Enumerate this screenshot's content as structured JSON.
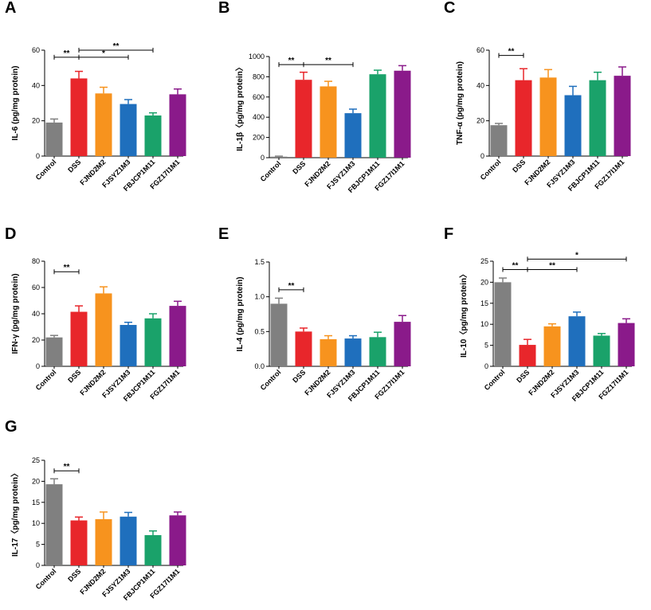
{
  "categories": [
    "Control",
    "DSS",
    "FJND2M2",
    "FJSYZ1M3",
    "FBJCP1M11",
    "FGZ17I1M1"
  ],
  "colors": [
    "#808080",
    "#e8262b",
    "#f7931e",
    "#1f6fbd",
    "#1aa26a",
    "#8a1a8a"
  ],
  "chart_data": [
    {
      "type": "bar",
      "letter": "A",
      "ylabel": "IL-6 (pg/mg protein)",
      "ylim": [
        0,
        60
      ],
      "yticks": [
        0,
        20,
        40,
        60
      ],
      "tick_labels": [
        "0",
        "20",
        "40",
        "60"
      ],
      "values": [
        19,
        44,
        35.5,
        29.5,
        23,
        35
      ],
      "errors": [
        2,
        4,
        3.5,
        2.5,
        1.5,
        3
      ],
      "significance": [
        {
          "from": 0,
          "to": 1,
          "label": "**",
          "y": 56
        },
        {
          "from": 1,
          "to": 3,
          "label": "*",
          "y": 56
        },
        {
          "from": 1,
          "to": 4,
          "label": "**",
          "y": 60
        }
      ]
    },
    {
      "type": "bar",
      "letter": "B",
      "ylabel": "IL-1β〈pg/mg protein〉",
      "ylim": [
        0,
        1000
      ],
      "yticks": [
        0,
        200,
        400,
        600,
        800,
        1000
      ],
      "tick_labels": [
        "0",
        "200",
        "400",
        "600",
        "800",
        "1000"
      ],
      "values": [
        10,
        770,
        705,
        440,
        825,
        860
      ],
      "errors": [
        5,
        75,
        50,
        40,
        40,
        50
      ],
      "significance": [
        {
          "from": 0,
          "to": 1,
          "label": "**",
          "y": 920
        },
        {
          "from": 1,
          "to": 3,
          "label": "**",
          "y": 920
        }
      ]
    },
    {
      "type": "bar",
      "letter": "C",
      "ylabel": "TNF-α (pg/mg protein)",
      "ylim": [
        0,
        60
      ],
      "yticks": [
        0,
        20,
        40,
        60
      ],
      "tick_labels": [
        "0",
        "20",
        "40",
        "60"
      ],
      "values": [
        17.5,
        43,
        44.5,
        34.5,
        43,
        45.5
      ],
      "errors": [
        1,
        6.5,
        4.5,
        5,
        4.5,
        5
      ],
      "significance": [
        {
          "from": 0,
          "to": 1,
          "label": "**",
          "y": 57
        }
      ]
    },
    {
      "type": "bar",
      "letter": "D",
      "ylabel": "IFN-γ (pg/mg protein)",
      "ylim": [
        0,
        80
      ],
      "yticks": [
        0,
        20,
        40,
        60,
        80
      ],
      "tick_labels": [
        "0",
        "20",
        "40",
        "60",
        "80"
      ],
      "values": [
        22,
        41.5,
        55.5,
        31.5,
        36.5,
        46
      ],
      "errors": [
        1.5,
        4.5,
        5,
        2,
        3.5,
        3.5
      ],
      "significance": [
        {
          "from": 0,
          "to": 1,
          "label": "**",
          "y": 72
        }
      ]
    },
    {
      "type": "bar",
      "letter": "E",
      "ylabel": "IL-4 (pg/mg protein)",
      "ylim": [
        0,
        1.5
      ],
      "yticks": [
        0,
        0.5,
        1.0,
        1.5
      ],
      "tick_labels": [
        "0.0",
        "0.5",
        "1.0",
        "1.5"
      ],
      "values": [
        0.9,
        0.5,
        0.39,
        0.4,
        0.42,
        0.64
      ],
      "errors": [
        0.08,
        0.05,
        0.05,
        0.04,
        0.07,
        0.09
      ],
      "significance": [
        {
          "from": 0,
          "to": 1,
          "label": "**",
          "y": 1.1
        }
      ]
    },
    {
      "type": "bar",
      "letter": "F",
      "ylabel": "IL-10〈pg/mg protein〉",
      "ylim": [
        0,
        25
      ],
      "yticks": [
        0,
        5,
        10,
        15,
        20,
        25
      ],
      "tick_labels": [
        "0",
        "5",
        "10",
        "15",
        "20",
        "25"
      ],
      "values": [
        20,
        5.1,
        9.5,
        11.9,
        7.3,
        10.3
      ],
      "errors": [
        1,
        1.3,
        0.6,
        1,
        0.5,
        1
      ],
      "significance": [
        {
          "from": 0,
          "to": 1,
          "label": "**",
          "y": 23
        },
        {
          "from": 1,
          "to": 3,
          "label": "**",
          "y": 23
        },
        {
          "from": 1,
          "to": 5,
          "label": "*",
          "y": 25.5
        }
      ]
    },
    {
      "type": "bar",
      "letter": "G",
      "ylabel": "IL-17〈pg/mg protein〉",
      "ylim": [
        0,
        25
      ],
      "yticks": [
        0,
        5,
        10,
        15,
        20,
        25
      ],
      "tick_labels": [
        "0",
        "5",
        "10",
        "15",
        "20",
        "25"
      ],
      "values": [
        19.3,
        10.7,
        11,
        11.6,
        7.2,
        11.9
      ],
      "errors": [
        1.3,
        0.8,
        1.7,
        1,
        1,
        0.8
      ],
      "significance": [
        {
          "from": 0,
          "to": 1,
          "label": "**",
          "y": 22.5
        }
      ]
    }
  ]
}
